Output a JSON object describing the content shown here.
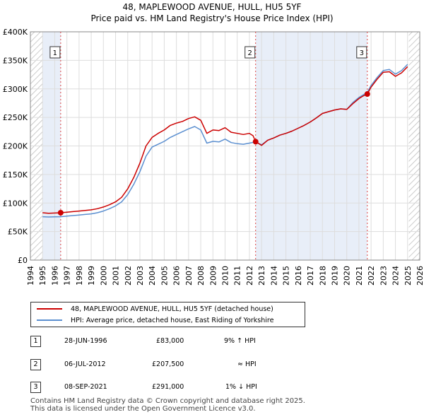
{
  "chart_data": {
    "type": "line",
    "title": "48, MAPLEWOOD AVENUE, HULL, HU5 5YF",
    "subtitle": "Price paid vs. HM Land Registry's House Price Index (HPI)",
    "xlim": [
      1994,
      2026
    ],
    "ylim": [
      0,
      400000
    ],
    "y_ticks": [
      0,
      50000,
      100000,
      150000,
      200000,
      250000,
      300000,
      350000,
      400000
    ],
    "y_tick_labels": [
      "£0",
      "£50K",
      "£100K",
      "£150K",
      "£200K",
      "£250K",
      "£300K",
      "£350K",
      "£400K"
    ],
    "x_ticks": [
      1994,
      1995,
      1996,
      1997,
      1998,
      1999,
      2000,
      2001,
      2002,
      2003,
      2004,
      2005,
      2006,
      2007,
      2008,
      2009,
      2010,
      2011,
      2012,
      2013,
      2014,
      2015,
      2016,
      2017,
      2018,
      2019,
      2020,
      2021,
      2022,
      2023,
      2024,
      2025,
      2026
    ],
    "shaded_ranges": [
      [
        1995.0,
        1996.49
      ],
      [
        2012.51,
        2021.69
      ],
      [
        2025.1,
        2026
      ]
    ],
    "hatched_ranges": [
      [
        1994,
        1995.0
      ],
      [
        2025.1,
        2026
      ]
    ],
    "series": [
      {
        "name": "48, MAPLEWOOD AVENUE, HULL, HU5 5YF (detached house)",
        "color": "#cc0000",
        "x": [
          1995.0,
          1995.5,
          1996.0,
          1996.49,
          1997.0,
          1997.5,
          1998.0,
          1998.5,
          1999.0,
          1999.5,
          2000.0,
          2000.5,
          2001.0,
          2001.5,
          2002.0,
          2002.5,
          2003.0,
          2003.5,
          2004.0,
          2004.5,
          2005.0,
          2005.5,
          2006.0,
          2006.5,
          2007.0,
          2007.5,
          2008.0,
          2008.5,
          2009.0,
          2009.5,
          2010.0,
          2010.5,
          2011.0,
          2011.5,
          2012.0,
          2012.3,
          2012.51,
          2013.0,
          2013.5,
          2014.0,
          2014.5,
          2015.0,
          2015.5,
          2016.0,
          2016.5,
          2017.0,
          2017.5,
          2018.0,
          2018.5,
          2019.0,
          2019.5,
          2020.0,
          2020.5,
          2021.0,
          2021.3,
          2021.69,
          2022.0,
          2022.5,
          2023.0,
          2023.5,
          2024.0,
          2024.5,
          2025.0
        ],
        "y": [
          83000,
          82000,
          82500,
          83000,
          84000,
          85000,
          86000,
          87000,
          88000,
          90000,
          93000,
          97000,
          102000,
          110000,
          125000,
          145000,
          170000,
          200000,
          215000,
          222000,
          228000,
          236000,
          240000,
          243000,
          248000,
          251000,
          245000,
          222000,
          228000,
          227000,
          232000,
          224000,
          222000,
          220000,
          222000,
          218000,
          207500,
          201000,
          210000,
          214000,
          219000,
          222000,
          226000,
          231000,
          236000,
          242000,
          249000,
          257000,
          260000,
          263000,
          265000,
          264000,
          274000,
          283000,
          287000,
          291000,
          303000,
          317000,
          329000,
          330000,
          322000,
          328000,
          339000
        ]
      },
      {
        "name": "HPI: Average price, detached house, East Riding of Yorkshire",
        "color": "#5b8fd0",
        "x": [
          1995.0,
          1995.5,
          1996.0,
          1996.49,
          1997.0,
          1997.5,
          1998.0,
          1998.5,
          1999.0,
          1999.5,
          2000.0,
          2000.5,
          2001.0,
          2001.5,
          2002.0,
          2002.5,
          2003.0,
          2003.5,
          2004.0,
          2004.5,
          2005.0,
          2005.5,
          2006.0,
          2006.5,
          2007.0,
          2007.5,
          2008.0,
          2008.5,
          2009.0,
          2009.5,
          2010.0,
          2010.5,
          2011.0,
          2011.5,
          2012.0,
          2012.51,
          2013.0,
          2013.5,
          2014.0,
          2014.5,
          2015.0,
          2015.5,
          2016.0,
          2016.5,
          2017.0,
          2017.5,
          2018.0,
          2018.5,
          2019.0,
          2019.5,
          2020.0,
          2020.5,
          2021.0,
          2021.69,
          2022.0,
          2022.5,
          2023.0,
          2023.5,
          2024.0,
          2024.5,
          2025.0
        ],
        "y": [
          76000,
          75500,
          75800,
          76000,
          77000,
          78000,
          79000,
          80000,
          81000,
          83000,
          86000,
          90000,
          95000,
          102000,
          115000,
          133000,
          155000,
          182000,
          198000,
          203000,
          208000,
          215000,
          220000,
          225000,
          230000,
          234000,
          228000,
          205000,
          208000,
          207000,
          212000,
          206000,
          204000,
          203000,
          205000,
          207000,
          202000,
          210000,
          214000,
          219000,
          222000,
          226000,
          231000,
          236000,
          242000,
          249000,
          257000,
          260000,
          263000,
          265000,
          264000,
          276000,
          285000,
          294000,
          306000,
          320000,
          332000,
          334000,
          326000,
          332000,
          343000
        ]
      }
    ],
    "sales": [
      {
        "label": "1",
        "x": 1996.49,
        "y": 83000
      },
      {
        "label": "2",
        "x": 2012.51,
        "y": 207500
      },
      {
        "label": "3",
        "x": 2021.69,
        "y": 291000
      }
    ]
  },
  "legend": {
    "property_label": "48, MAPLEWOOD AVENUE, HULL, HU5 5YF (detached house)",
    "hpi_label": "HPI: Average price, detached house, East Riding of Yorkshire"
  },
  "transactions": [
    {
      "num": "1",
      "date": "28-JUN-1996",
      "price": "£83,000",
      "change": "9% ↑ HPI"
    },
    {
      "num": "2",
      "date": "06-JUL-2012",
      "price": "£207,500",
      "change": "≈ HPI"
    },
    {
      "num": "3",
      "date": "08-SEP-2021",
      "price": "£291,000",
      "change": "1% ↓ HPI"
    }
  ],
  "footer": {
    "line1": "Contains HM Land Registry data © Crown copyright and database right 2025.",
    "line2": "This data is licensed under the Open Government Licence v3.0."
  }
}
